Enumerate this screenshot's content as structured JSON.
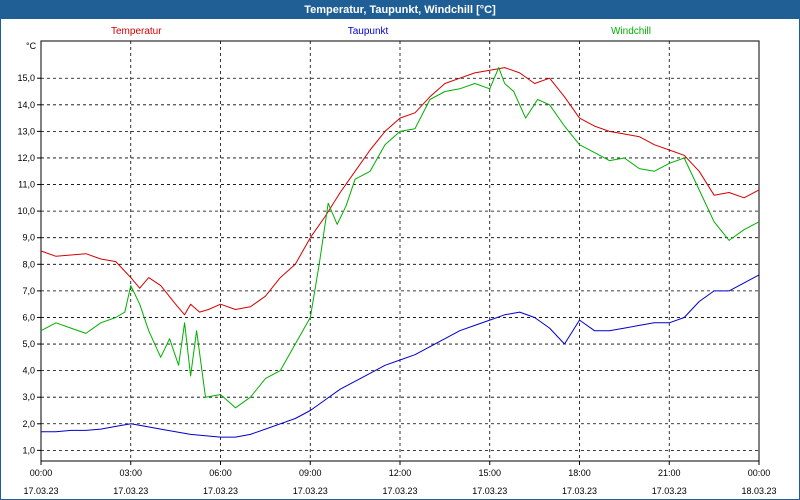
{
  "window": {
    "title": "Temperatur, Taupunkt, Windchill [°C]"
  },
  "chart_data": {
    "type": "line",
    "title": "Temperatur, Taupunkt, Windchill [°C]",
    "ylabel": "°C",
    "ylim": [
      0.6,
      16.4
    ],
    "xlim": [
      0,
      24
    ],
    "grid": true,
    "yticks": [
      "1,0",
      "2,0",
      "3,0",
      "4,0",
      "5,0",
      "6,0",
      "7,0",
      "8,0",
      "9,0",
      "10,0",
      "11,0",
      "12,0",
      "13,0",
      "14,0",
      "15,0"
    ],
    "yticks_values": [
      1,
      2,
      3,
      4,
      5,
      6,
      7,
      8,
      9,
      10,
      11,
      12,
      13,
      14,
      15
    ],
    "xticks": [
      {
        "time": "00:00",
        "date": "17.03.23",
        "hour": 0
      },
      {
        "time": "03:00",
        "date": "17.03.23",
        "hour": 3
      },
      {
        "time": "06:00",
        "date": "17.03.23",
        "hour": 6
      },
      {
        "time": "09:00",
        "date": "17.03.23",
        "hour": 9
      },
      {
        "time": "12:00",
        "date": "17.03.23",
        "hour": 12
      },
      {
        "time": "15:00",
        "date": "17.03.23",
        "hour": 15
      },
      {
        "time": "18:00",
        "date": "17.03.23",
        "hour": 18
      },
      {
        "time": "21:00",
        "date": "17.03.23",
        "hour": 21
      },
      {
        "time": "00:00",
        "date": "18.03.23",
        "hour": 24
      }
    ],
    "series": [
      {
        "name": "Temperatur",
        "color": "#d40000",
        "x": [
          0,
          0.5,
          1,
          1.5,
          2,
          2.5,
          3,
          3.3,
          3.6,
          4,
          4.5,
          4.8,
          5,
          5.3,
          5.6,
          6,
          6.5,
          7,
          7.5,
          8,
          8.5,
          9,
          9.5,
          10,
          10.5,
          11,
          11.5,
          12,
          12.5,
          13,
          13.5,
          14,
          14.5,
          15,
          15.5,
          16,
          16.5,
          17,
          17.5,
          18,
          18.5,
          19,
          19.5,
          20,
          20.5,
          21,
          21.5,
          22,
          22.5,
          23,
          23.5,
          24
        ],
        "values": [
          8.5,
          8.3,
          8.35,
          8.4,
          8.2,
          8.1,
          7.5,
          7.1,
          7.5,
          7.2,
          6.5,
          6.1,
          6.5,
          6.2,
          6.3,
          6.5,
          6.3,
          6.4,
          6.8,
          7.5,
          8.0,
          9.0,
          9.8,
          10.7,
          11.5,
          12.3,
          13.0,
          13.5,
          13.7,
          14.3,
          14.8,
          15.0,
          15.2,
          15.3,
          15.4,
          15.2,
          14.8,
          15.0,
          14.3,
          13.5,
          13.2,
          13.0,
          12.9,
          12.8,
          12.5,
          12.3,
          12.1,
          11.5,
          10.6,
          10.7,
          10.5,
          10.8
        ]
      },
      {
        "name": "Taupunkt",
        "color": "#0000cc",
        "x": [
          0,
          0.5,
          1,
          1.5,
          2,
          2.5,
          3,
          3.5,
          4,
          4.5,
          5,
          5.5,
          6,
          6.5,
          7,
          7.5,
          8,
          8.5,
          9,
          9.5,
          10,
          10.5,
          11,
          11.5,
          12,
          12.5,
          13,
          13.5,
          14,
          14.5,
          15,
          15.5,
          16,
          16.5,
          17,
          17.5,
          18,
          18.5,
          19,
          19.5,
          20,
          20.5,
          21,
          21.5,
          22,
          22.5,
          23,
          23.5,
          24
        ],
        "values": [
          1.7,
          1.7,
          1.75,
          1.75,
          1.8,
          1.9,
          2.0,
          1.9,
          1.8,
          1.7,
          1.6,
          1.55,
          1.5,
          1.5,
          1.6,
          1.8,
          2.0,
          2.2,
          2.5,
          2.9,
          3.3,
          3.6,
          3.9,
          4.2,
          4.4,
          4.6,
          4.9,
          5.2,
          5.5,
          5.7,
          5.9,
          6.1,
          6.2,
          6.0,
          5.6,
          5.0,
          5.9,
          5.5,
          5.5,
          5.6,
          5.7,
          5.8,
          5.8,
          6.0,
          6.6,
          7.0,
          7.0,
          7.3,
          7.6
        ]
      },
      {
        "name": "Windchill",
        "color": "#00b000",
        "x": [
          0,
          0.5,
          1,
          1.5,
          2,
          2.5,
          2.8,
          3,
          3.3,
          3.6,
          4,
          4.3,
          4.6,
          4.8,
          5,
          5.2,
          5.5,
          6,
          6.5,
          7,
          7.5,
          8,
          8.5,
          9,
          9.3,
          9.6,
          9.9,
          10.2,
          10.5,
          11,
          11.5,
          12,
          12.5,
          13,
          13.5,
          14,
          14.5,
          15,
          15.3,
          15.5,
          15.8,
          16.2,
          16.6,
          17,
          17.5,
          18,
          18.5,
          19,
          19.5,
          20,
          20.5,
          21,
          21.5,
          22,
          22.5,
          23,
          23.5,
          24
        ],
        "values": [
          5.5,
          5.8,
          5.6,
          5.4,
          5.8,
          6.0,
          6.2,
          7.2,
          6.5,
          5.5,
          4.5,
          5.2,
          4.2,
          5.8,
          3.8,
          5.5,
          3.0,
          3.1,
          2.6,
          3.0,
          3.7,
          4.0,
          5.0,
          6.0,
          8.0,
          10.3,
          9.5,
          10.2,
          11.2,
          11.5,
          12.5,
          13.0,
          13.1,
          14.2,
          14.5,
          14.6,
          14.8,
          14.6,
          15.4,
          14.8,
          14.5,
          13.5,
          14.2,
          14.0,
          13.2,
          12.5,
          12.2,
          11.9,
          12.0,
          11.6,
          11.5,
          11.8,
          12.0,
          10.8,
          9.6,
          8.9,
          9.3,
          9.6
        ]
      }
    ]
  }
}
